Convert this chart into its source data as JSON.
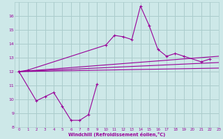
{
  "xlabel": "Windchill (Refroidissement éolien,°C)",
  "background_color": "#cde8e8",
  "grid_color": "#aacccc",
  "line_color": "#990099",
  "x_data": [
    0,
    1,
    2,
    3,
    4,
    5,
    6,
    7,
    8,
    9,
    10,
    11,
    12,
    13,
    14,
    15,
    16,
    17,
    18,
    19,
    20,
    21,
    22,
    23
  ],
  "series1": [
    12.0,
    12.1,
    null,
    null,
    null,
    null,
    null,
    null,
    null,
    null,
    13.9,
    14.6,
    14.5,
    14.3,
    16.7,
    15.3,
    13.6,
    13.1,
    13.3,
    13.1,
    null,
    12.7,
    12.9,
    null
  ],
  "series2": [
    12.0,
    null,
    9.9,
    10.2,
    10.5,
    9.5,
    8.5,
    8.5,
    8.9,
    11.1,
    null,
    null,
    null,
    null,
    null,
    null,
    null,
    null,
    null,
    null,
    null,
    null,
    null,
    null
  ],
  "reg_lines": [
    {
      "x": [
        0,
        23
      ],
      "y": [
        12.0,
        13.1
      ]
    },
    {
      "x": [
        0,
        23
      ],
      "y": [
        12.0,
        12.65
      ]
    },
    {
      "x": [
        0,
        23
      ],
      "y": [
        12.0,
        12.25
      ]
    }
  ],
  "ylim": [
    8,
    17
  ],
  "xlim": [
    -0.5,
    23
  ],
  "yticks": [
    8,
    9,
    10,
    11,
    12,
    13,
    14,
    15,
    16
  ],
  "xticks": [
    0,
    1,
    2,
    3,
    4,
    5,
    6,
    7,
    8,
    9,
    10,
    11,
    12,
    13,
    14,
    15,
    16,
    17,
    18,
    19,
    20,
    21,
    22,
    23
  ]
}
